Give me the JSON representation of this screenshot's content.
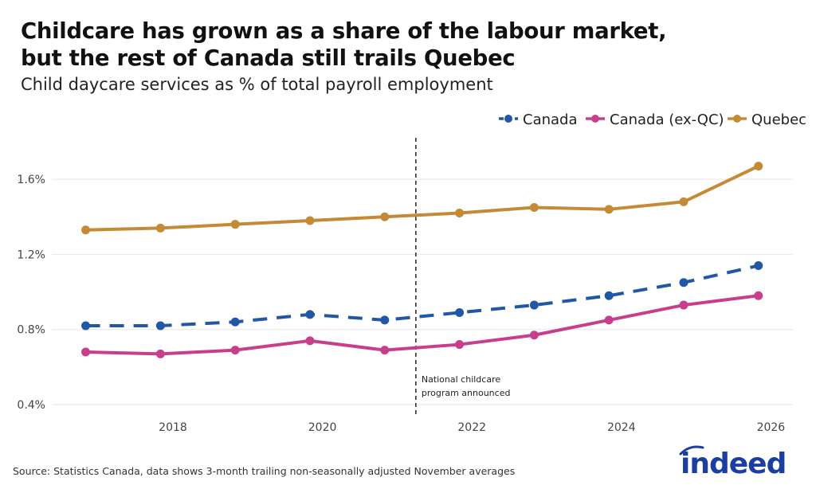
{
  "title_line1": "Childcare has grown as a share of the labour market,",
  "title_line2": "but the rest of Canada still trails Quebec",
  "subtitle": "Child daycare services as % of total payroll employment",
  "source": "Source: Statistics Canada, data shows 3-month trailing non-seasonally adjusted November averages",
  "logo_text": "indeed",
  "colors": {
    "Canada": "#2257a8",
    "Canada (ex-QC)": "#c93e8c",
    "Quebec": "#c48a35",
    "logo": "#1b3fa0"
  },
  "chart_data": {
    "type": "line",
    "title": "Childcare has grown as a share of the labour market, but the rest of Canada still trails Quebec",
    "subtitle": "Child daycare services as % of total payroll employment",
    "xlabel": "",
    "ylabel": "",
    "x": [
      "2016-11",
      "2017-11",
      "2018-11",
      "2019-11",
      "2020-11",
      "2021-11",
      "2022-11",
      "2023-11",
      "2024-11",
      "2025-11"
    ],
    "x_ticks": [
      "2018",
      "2020",
      "2022",
      "2024",
      "2026"
    ],
    "y_ticks": [
      "0.4%",
      "0.8%",
      "1.2%",
      "1.6%"
    ],
    "ylim": [
      0.4,
      1.8
    ],
    "grid": "horizontal",
    "legend": "top-right",
    "series": [
      {
        "name": "Canada",
        "style": "dashed",
        "values": [
          0.82,
          0.82,
          0.84,
          0.88,
          0.85,
          0.89,
          0.93,
          0.98,
          1.05,
          1.14
        ]
      },
      {
        "name": "Canada (ex-QC)",
        "style": "solid",
        "values": [
          0.68,
          0.67,
          0.69,
          0.74,
          0.69,
          0.72,
          0.77,
          0.85,
          0.93,
          0.98
        ]
      },
      {
        "name": "Quebec",
        "style": "solid",
        "values": [
          1.33,
          1.34,
          1.36,
          1.38,
          1.4,
          1.42,
          1.45,
          1.44,
          1.48,
          1.67
        ]
      }
    ],
    "annotations": [
      {
        "x": "2021-04",
        "type": "vertical-dashed-line",
        "label_line1": "National childcare",
        "label_line2": "program announced"
      }
    ]
  }
}
